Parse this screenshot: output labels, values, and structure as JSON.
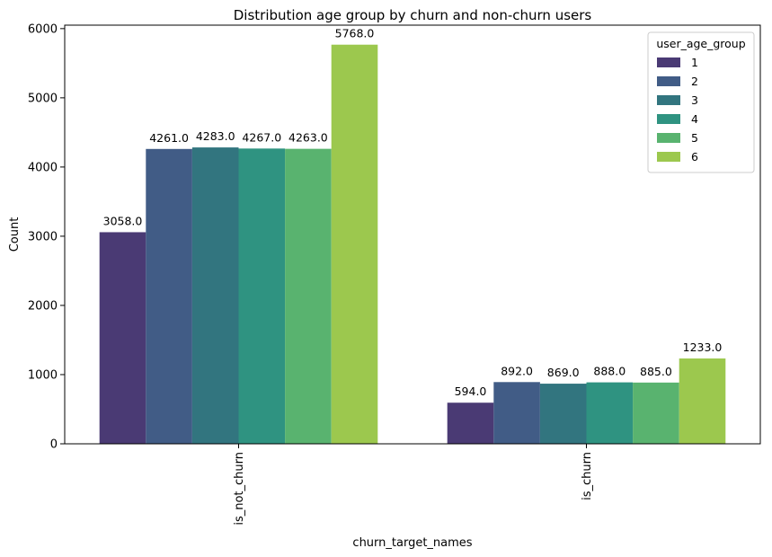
{
  "chart_data": {
    "type": "bar",
    "title": "Distribution age group by churn and non-churn users",
    "xlabel": "churn_target_names",
    "ylabel": "Count",
    "categories": [
      "is_not_churn",
      "is_churn"
    ],
    "ylim": [
      0,
      6050
    ],
    "yticks": [
      0,
      1000,
      2000,
      3000,
      4000,
      5000,
      6000
    ],
    "legend_title": "user_age_group",
    "legend_position": "top-right",
    "grid": false,
    "series": [
      {
        "name": "1",
        "color": "#4a3a74",
        "values": [
          3058,
          594
        ],
        "labels": [
          "3058.0",
          "594.0"
        ]
      },
      {
        "name": "2",
        "color": "#415c86",
        "values": [
          4261,
          892
        ],
        "labels": [
          "4261.0",
          "892.0"
        ]
      },
      {
        "name": "3",
        "color": "#32757f",
        "values": [
          4283,
          869
        ],
        "labels": [
          "4283.0",
          "869.0"
        ]
      },
      {
        "name": "4",
        "color": "#2f9381",
        "values": [
          4267,
          888
        ],
        "labels": [
          "4267.0",
          "888.0"
        ]
      },
      {
        "name": "5",
        "color": "#59b36f",
        "values": [
          4263,
          885
        ],
        "labels": [
          "4263.0",
          "885.0"
        ]
      },
      {
        "name": "6",
        "color": "#9cc84e",
        "values": [
          5768,
          1233
        ],
        "labels": [
          "5768.0",
          "1233.0"
        ]
      }
    ]
  }
}
